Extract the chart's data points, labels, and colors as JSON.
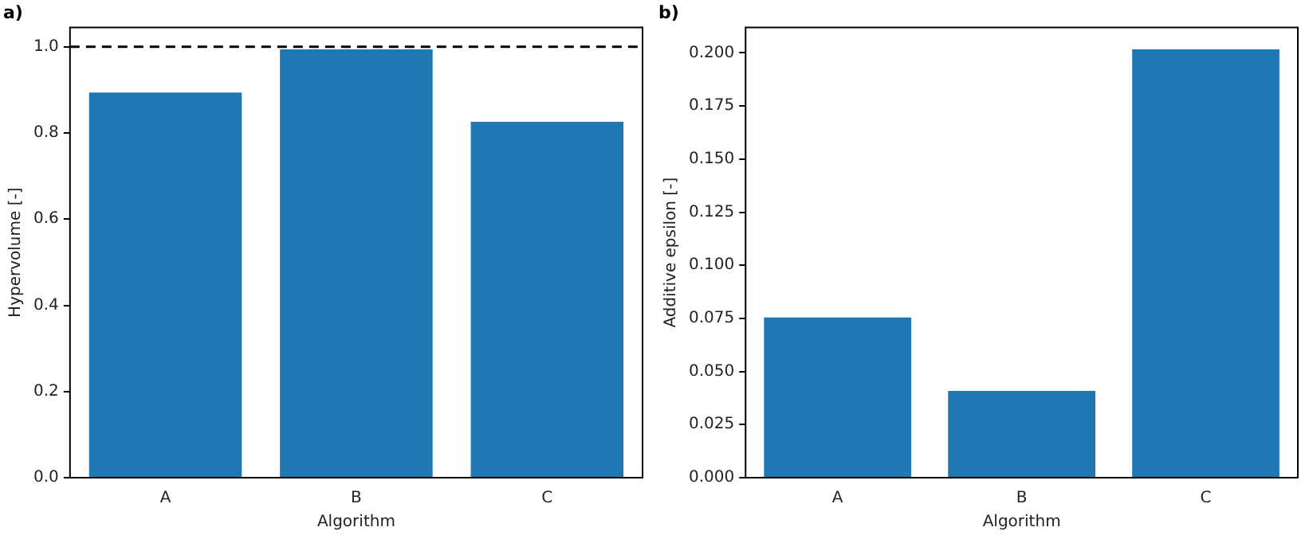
{
  "chart_data": [
    {
      "type": "bar",
      "title": "a)",
      "xlabel": "Algorithm",
      "ylabel": "Hypervolume [-]",
      "categories": [
        "A",
        "B",
        "C"
      ],
      "values": [
        0.894,
        0.994,
        0.826
      ],
      "color": "#1f77b4",
      "ylim": [
        0,
        1.045
      ],
      "yticks": [
        {
          "value": 0,
          "label": "0.0"
        },
        0.2,
        0.4,
        0.6,
        0.8,
        {
          "value": 1,
          "label": "1.0"
        }
      ],
      "grid": false,
      "ref_lines": [
        {
          "axis": "y",
          "value": 1.0,
          "color": "#000000",
          "line_style": "dashed"
        }
      ]
    },
    {
      "type": "bar",
      "title": "b)",
      "xlabel": "Algorithm",
      "ylabel": "Additive epsilon [-]",
      "categories": [
        "A",
        "B",
        "C"
      ],
      "values": [
        0.0754,
        0.0409,
        0.2017
      ],
      "color": "#1f77b4",
      "ylim": [
        0,
        0.212
      ],
      "yticks": [
        {
          "value": 0,
          "label": "0.000"
        },
        0.025,
        {
          "value": 0.05,
          "label": "0.050"
        },
        0.075,
        {
          "value": 0.1,
          "label": "0.100"
        },
        0.125,
        {
          "value": 0.15,
          "label": "0.150"
        },
        0.175,
        {
          "value": 0.2,
          "label": "0.200"
        }
      ],
      "grid": false
    }
  ]
}
